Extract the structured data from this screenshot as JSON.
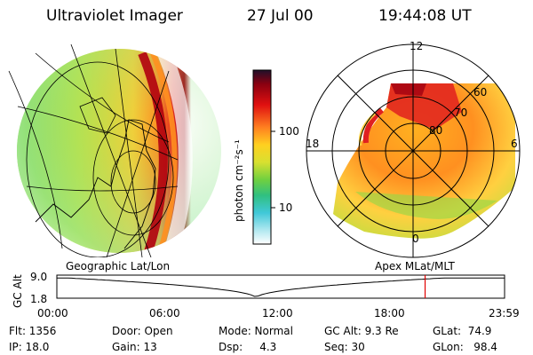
{
  "header": {
    "instrument": "Ultraviolet Imager",
    "date": "27 Jul 00",
    "time": "19:44:08 UT"
  },
  "colorbar": {
    "unit_label": "photon cm⁻²s⁻¹",
    "ticks": [
      "100",
      "10"
    ]
  },
  "polar_plot": {
    "mlt_labels": [
      "12",
      "18",
      "6",
      "0"
    ],
    "mlat_labels": [
      "60",
      "70",
      "80"
    ]
  },
  "timeline": {
    "left_title": "Geographic Lat/Lon",
    "right_title": "Apex MLat/MLT",
    "y_axis_label": "GC Alt",
    "y_ticks": [
      "9.0",
      "1.8"
    ],
    "x_ticks": [
      "00:00",
      "06:00",
      "12:00",
      "18:00",
      "23:59"
    ],
    "current_time_fraction": 0.8225
  },
  "info": {
    "flt": "Flt: 1356",
    "ip": "IP: 18.0",
    "door": "Door: Open",
    "gain": "Gain: 13",
    "mode": "Mode: Normal",
    "dsp": "Dsp:     4.3",
    "gc_alt": "GC Alt: 9.3 Re",
    "seq": "Seq: 30",
    "glat": "GLat:  74.9",
    "glon": "GLon:   98.4"
  }
}
